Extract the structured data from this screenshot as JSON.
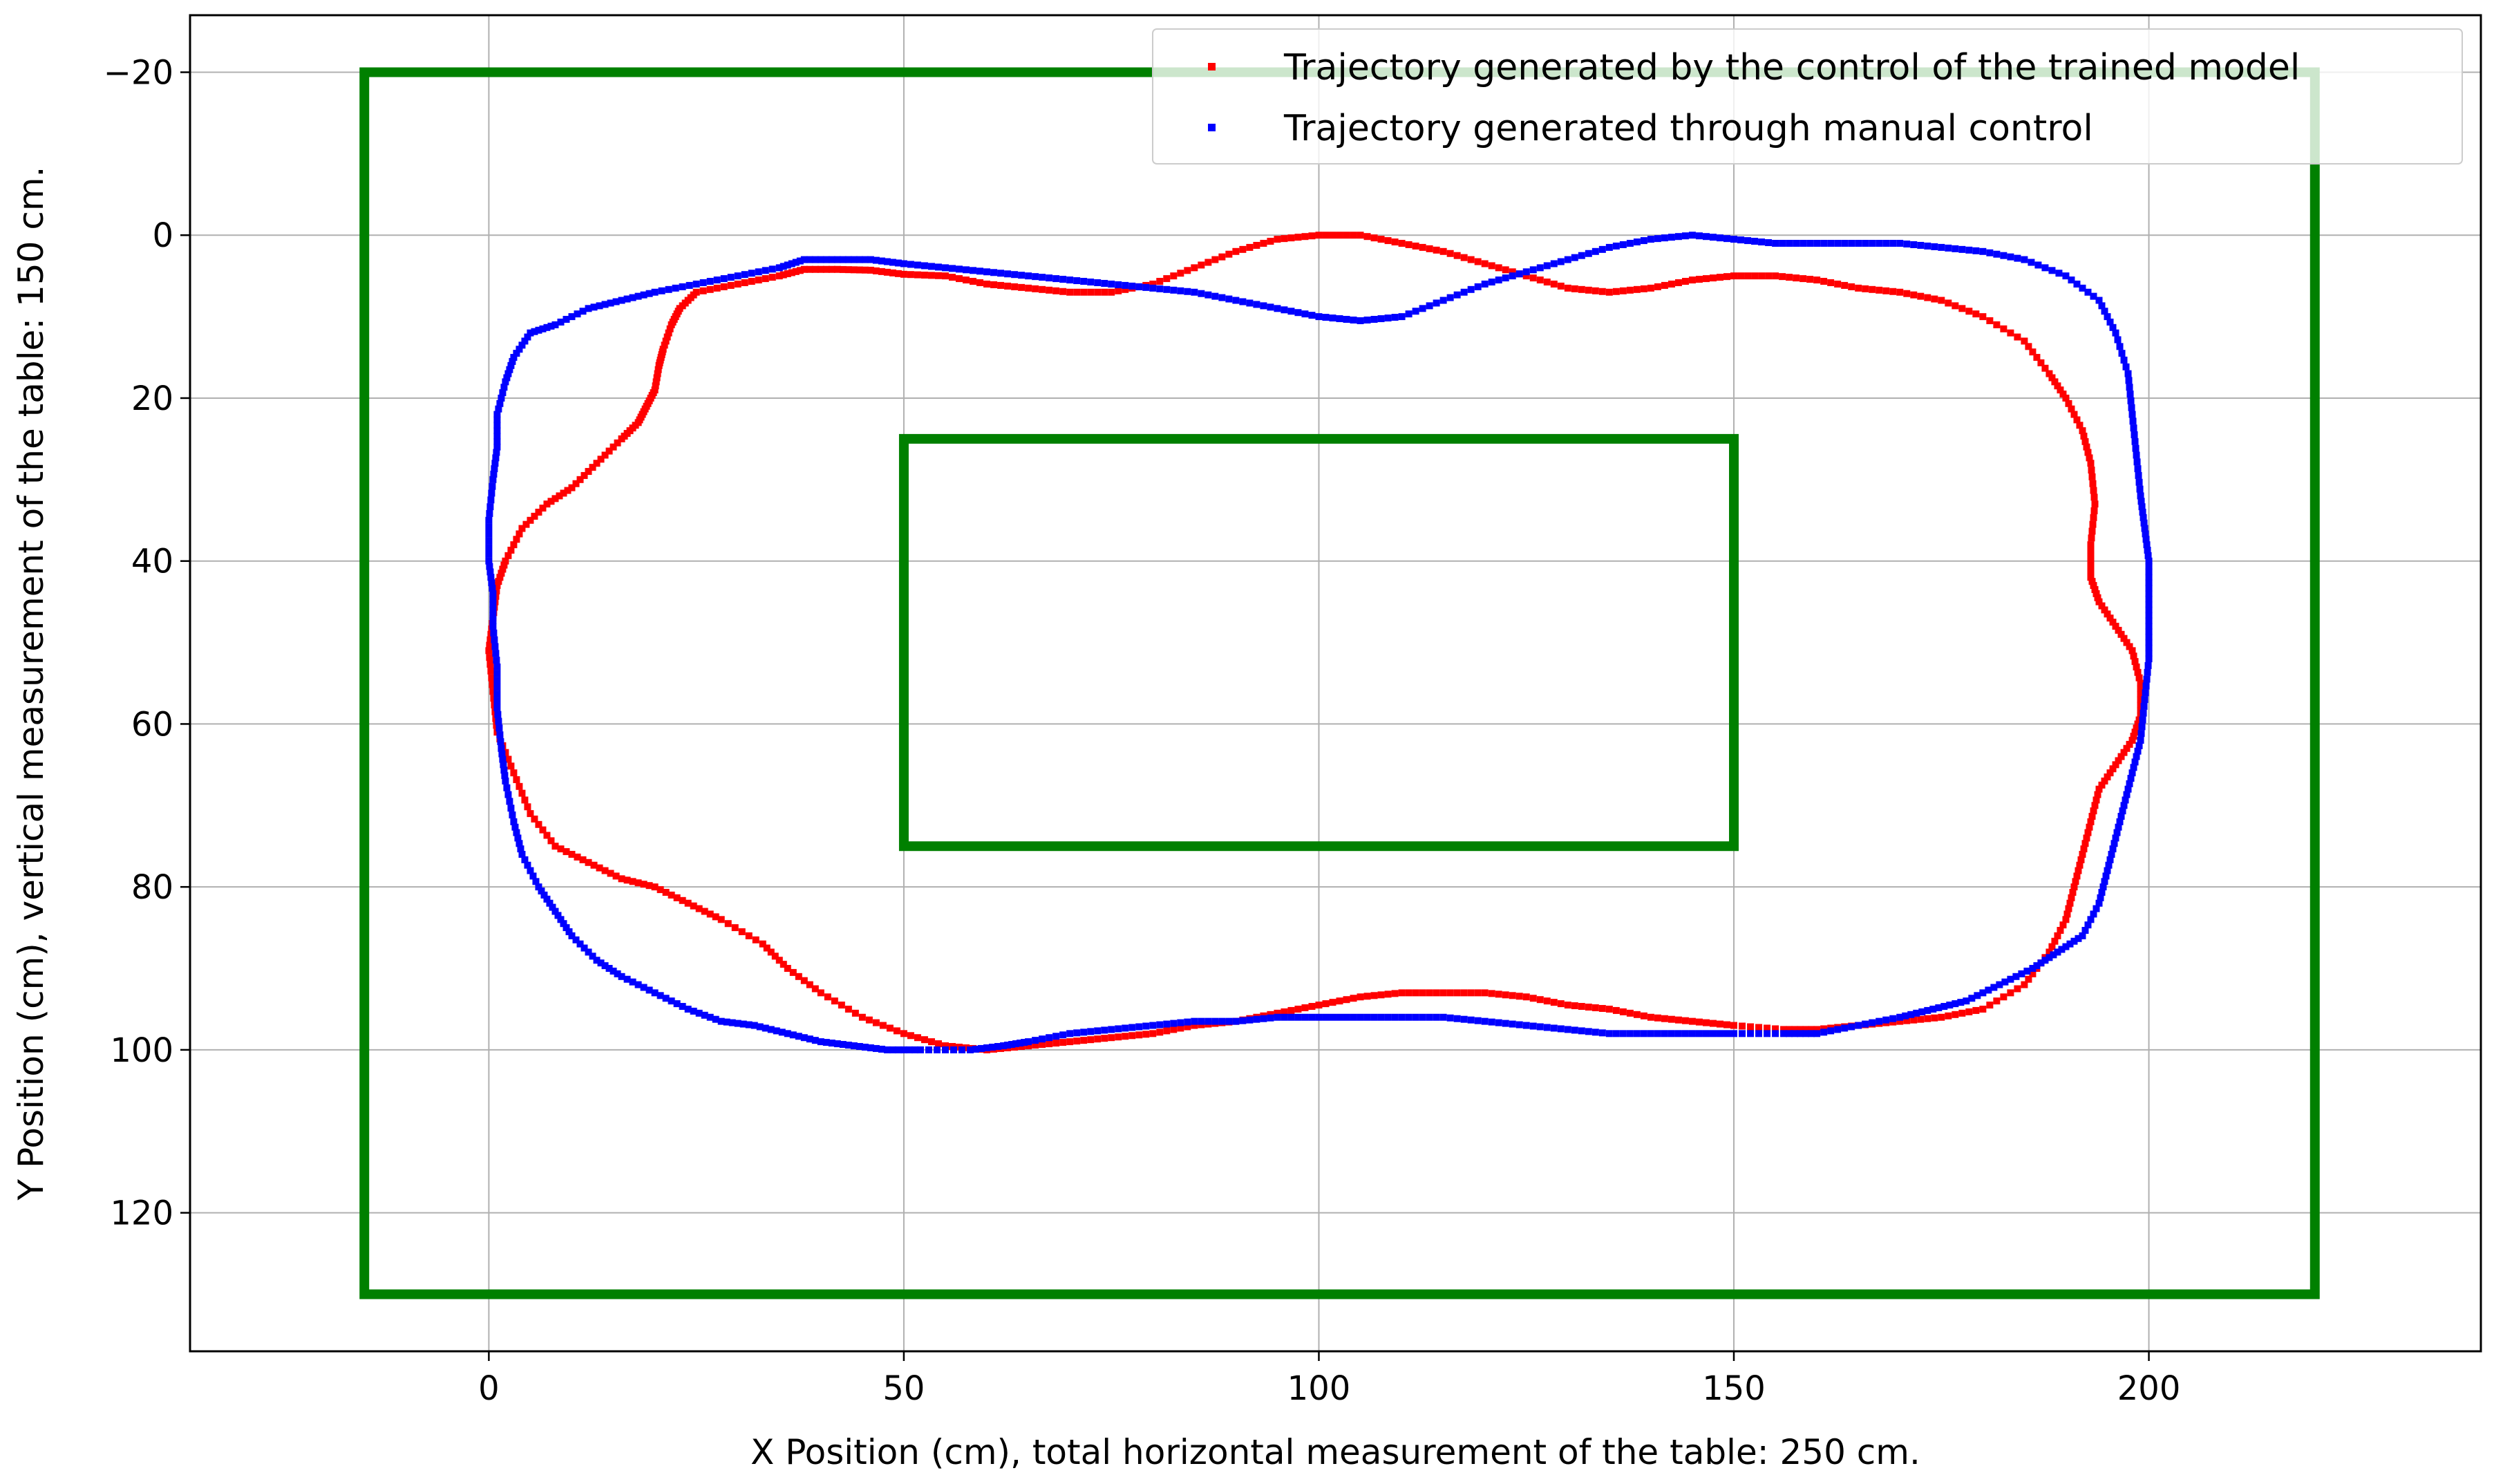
{
  "chart_data": {
    "type": "scatter",
    "title": "",
    "xlabel": "X Position (cm), total horizontal measurement of the table: 250 cm.",
    "ylabel": "Y Position (cm), vertical measurement of the table: 150 cm.",
    "xlim": [
      -36,
      240
    ],
    "ylim": [
      137,
      -27
    ],
    "y_inverted": true,
    "grid": true,
    "legend_position": "top-right",
    "xticks": [
      0,
      50,
      100,
      150,
      200
    ],
    "yticks": [
      -20,
      0,
      20,
      40,
      60,
      80,
      100,
      120
    ],
    "xtick_labels": [
      "0",
      "50",
      "100",
      "150",
      "200"
    ],
    "ytick_labels": [
      "−20",
      "0",
      "20",
      "40",
      "60",
      "80",
      "100",
      "120"
    ],
    "rectangles": [
      {
        "x0": -15,
        "y0": -20,
        "x1": 220,
        "y1": 130,
        "color": "#008000"
      },
      {
        "x0": 50,
        "y0": 25,
        "x1": 150,
        "y1": 75,
        "color": "#008000"
      }
    ],
    "series": [
      {
        "name": "Trajectory generated by the control of the trained model",
        "color": "#ff0000",
        "points": [
          [
            60,
            100
          ],
          [
            55,
            99.5
          ],
          [
            50,
            98
          ],
          [
            45,
            96
          ],
          [
            40,
            93
          ],
          [
            36,
            90
          ],
          [
            33,
            87
          ],
          [
            28,
            84
          ],
          [
            24,
            82
          ],
          [
            20,
            80
          ],
          [
            16,
            79
          ],
          [
            12,
            77
          ],
          [
            8,
            75
          ],
          [
            5,
            71
          ],
          [
            3,
            66
          ],
          [
            1,
            61
          ],
          [
            0.5,
            56
          ],
          [
            0,
            51
          ],
          [
            0.5,
            47
          ],
          [
            1,
            43
          ],
          [
            2,
            40
          ],
          [
            4,
            36
          ],
          [
            7,
            33
          ],
          [
            10,
            31
          ],
          [
            13,
            28
          ],
          [
            16,
            25
          ],
          [
            18,
            23
          ],
          [
            19,
            21
          ],
          [
            20,
            19
          ],
          [
            20.5,
            16
          ],
          [
            21,
            14
          ],
          [
            22,
            11
          ],
          [
            23,
            9
          ],
          [
            25,
            7
          ],
          [
            30,
            6
          ],
          [
            35,
            5
          ],
          [
            38,
            4.2
          ],
          [
            42,
            4.2
          ],
          [
            46,
            4.3
          ],
          [
            50,
            4.8
          ],
          [
            55,
            5
          ],
          [
            60,
            6
          ],
          [
            65,
            6.5
          ],
          [
            70,
            7
          ],
          [
            75,
            7
          ],
          [
            80,
            6
          ],
          [
            85,
            4
          ],
          [
            90,
            2
          ],
          [
            95,
            0.5
          ],
          [
            100,
            0
          ],
          [
            105,
            0
          ],
          [
            110,
            1
          ],
          [
            115,
            2
          ],
          [
            120,
            3.5
          ],
          [
            125,
            5
          ],
          [
            130,
            6.5
          ],
          [
            135,
            7
          ],
          [
            140,
            6.5
          ],
          [
            145,
            5.5
          ],
          [
            150,
            5
          ],
          [
            155,
            5
          ],
          [
            160,
            5.5
          ],
          [
            165,
            6.5
          ],
          [
            170,
            7
          ],
          [
            175,
            8
          ],
          [
            180,
            10
          ],
          [
            185,
            13
          ],
          [
            188,
            17
          ],
          [
            190,
            20
          ],
          [
            192,
            24
          ],
          [
            193,
            28
          ],
          [
            193.5,
            33
          ],
          [
            193,
            38
          ],
          [
            193,
            42
          ],
          [
            194,
            45
          ],
          [
            196,
            48
          ],
          [
            198,
            51
          ],
          [
            199,
            55
          ],
          [
            199,
            59
          ],
          [
            198,
            62
          ],
          [
            196,
            65
          ],
          [
            194,
            68
          ],
          [
            193,
            72
          ],
          [
            192,
            76
          ],
          [
            191,
            80
          ],
          [
            190,
            84
          ],
          [
            188,
            88
          ],
          [
            185,
            92
          ],
          [
            180,
            95
          ],
          [
            175,
            96
          ],
          [
            170,
            96.5
          ],
          [
            165,
            97
          ],
          [
            160,
            97.5
          ],
          [
            156,
            97.5
          ],
          [
            150,
            97
          ],
          [
            145,
            96.5
          ],
          [
            140,
            96
          ],
          [
            135,
            95
          ],
          [
            130,
            94.5
          ],
          [
            125,
            93.5
          ],
          [
            120,
            93
          ],
          [
            115,
            93
          ],
          [
            110,
            93
          ],
          [
            105,
            93.5
          ],
          [
            100,
            94.5
          ],
          [
            95,
            95.5
          ],
          [
            90,
            96.5
          ],
          [
            85,
            97
          ],
          [
            80,
            98
          ],
          [
            75,
            98.5
          ],
          [
            70,
            99
          ],
          [
            65,
            99.5
          ]
        ]
      },
      {
        "name": "Trajectory generated through manual control",
        "color": "#0000ff",
        "points": [
          [
            58,
            100
          ],
          [
            52,
            100
          ],
          [
            48,
            100
          ],
          [
            44,
            99.5
          ],
          [
            40,
            99
          ],
          [
            36,
            98
          ],
          [
            32,
            97
          ],
          [
            28,
            96.5
          ],
          [
            24,
            95
          ],
          [
            20,
            93
          ],
          [
            16,
            91
          ],
          [
            13,
            89
          ],
          [
            10,
            86
          ],
          [
            8,
            83
          ],
          [
            6,
            80
          ],
          [
            4,
            76
          ],
          [
            3,
            72
          ],
          [
            2,
            67
          ],
          [
            1.5,
            63
          ],
          [
            1,
            58
          ],
          [
            1,
            53
          ],
          [
            0.5,
            48
          ],
          [
            0.5,
            44
          ],
          [
            0,
            40
          ],
          [
            0,
            35
          ],
          [
            0.5,
            30
          ],
          [
            1,
            26
          ],
          [
            1,
            22
          ],
          [
            2,
            18
          ],
          [
            3,
            15
          ],
          [
            5,
            12
          ],
          [
            8,
            11
          ],
          [
            12,
            9
          ],
          [
            16,
            8
          ],
          [
            20,
            7
          ],
          [
            25,
            6
          ],
          [
            30,
            5
          ],
          [
            35,
            4
          ],
          [
            38,
            3
          ],
          [
            42,
            3
          ],
          [
            46,
            3
          ],
          [
            50,
            3.5
          ],
          [
            55,
            4
          ],
          [
            60,
            4.5
          ],
          [
            65,
            5
          ],
          [
            70,
            5.5
          ],
          [
            75,
            6
          ],
          [
            80,
            6.5
          ],
          [
            85,
            7
          ],
          [
            90,
            8
          ],
          [
            95,
            9
          ],
          [
            100,
            10
          ],
          [
            105,
            10.5
          ],
          [
            110,
            10
          ],
          [
            115,
            8
          ],
          [
            120,
            6
          ],
          [
            125,
            4.5
          ],
          [
            130,
            3
          ],
          [
            135,
            1.5
          ],
          [
            140,
            0.5
          ],
          [
            145,
            0
          ],
          [
            150,
            0.5
          ],
          [
            155,
            1
          ],
          [
            160,
            1
          ],
          [
            165,
            1
          ],
          [
            170,
            1
          ],
          [
            175,
            1.5
          ],
          [
            180,
            2
          ],
          [
            185,
            3
          ],
          [
            190,
            5
          ],
          [
            194,
            8
          ],
          [
            196,
            12
          ],
          [
            197.5,
            17
          ],
          [
            198,
            22
          ],
          [
            198.5,
            27
          ],
          [
            199,
            32
          ],
          [
            199.5,
            36
          ],
          [
            200,
            40
          ],
          [
            200,
            44
          ],
          [
            200,
            48
          ],
          [
            200,
            52
          ],
          [
            199.5,
            57
          ],
          [
            199,
            62
          ],
          [
            198,
            66
          ],
          [
            197,
            70
          ],
          [
            196,
            74
          ],
          [
            195,
            78
          ],
          [
            194,
            82
          ],
          [
            192,
            86
          ],
          [
            189,
            88
          ],
          [
            186,
            90
          ],
          [
            182,
            92
          ],
          [
            178,
            94
          ],
          [
            174,
            95
          ],
          [
            170,
            96
          ],
          [
            165,
            97
          ],
          [
            160,
            98
          ],
          [
            156,
            98
          ],
          [
            150,
            98
          ],
          [
            145,
            98
          ],
          [
            140,
            98
          ],
          [
            135,
            98
          ],
          [
            130,
            97.5
          ],
          [
            125,
            97
          ],
          [
            120,
            96.5
          ],
          [
            115,
            96
          ],
          [
            110,
            96
          ],
          [
            105,
            96
          ],
          [
            100,
            96
          ],
          [
            95,
            96
          ],
          [
            90,
            96.5
          ],
          [
            85,
            96.5
          ],
          [
            80,
            97
          ],
          [
            75,
            97.5
          ],
          [
            70,
            98
          ],
          [
            65,
            99
          ],
          [
            62,
            99.5
          ]
        ]
      }
    ]
  }
}
